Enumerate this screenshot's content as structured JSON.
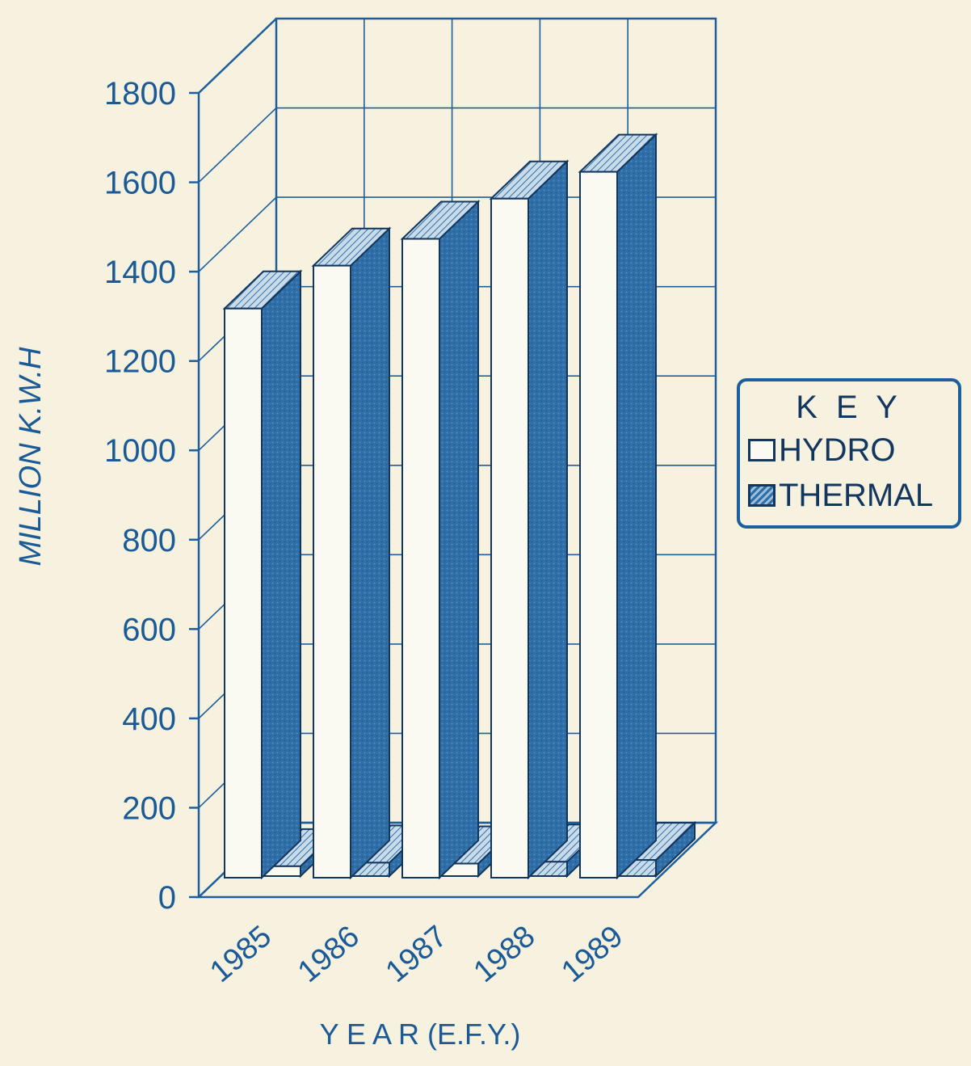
{
  "chart_data": {
    "type": "bar",
    "title": "",
    "xlabel": "Y E A R (E.F.Y.)",
    "ylabel": "MILLION K.W.H",
    "ylim": [
      0,
      1800
    ],
    "yticks": [
      "0",
      "200",
      "400",
      "600",
      "800",
      "1000",
      "1200",
      "1400",
      "1600",
      "1800"
    ],
    "categories": [
      "1985",
      "1986",
      "1987",
      "1988",
      "1989"
    ],
    "series": [
      {
        "name": "HYDRO",
        "values": [
          1274,
          1370,
          1430,
          1520,
          1580
        ]
      },
      {
        "name": "THERMAL",
        "values": [
          22,
          30,
          28,
          32,
          36
        ]
      }
    ],
    "legend": {
      "title": "K E Y",
      "position": "right"
    },
    "grid": true,
    "three_d": true
  },
  "colors": {
    "background": "#f7f1df",
    "frame": "#1d5f9c",
    "text": "#12365e",
    "axis_text": "#1a5a97",
    "bar_front": "#fbfaf2",
    "bar_side": "#2f6fa8",
    "bar_top": "#7fa9cf"
  }
}
